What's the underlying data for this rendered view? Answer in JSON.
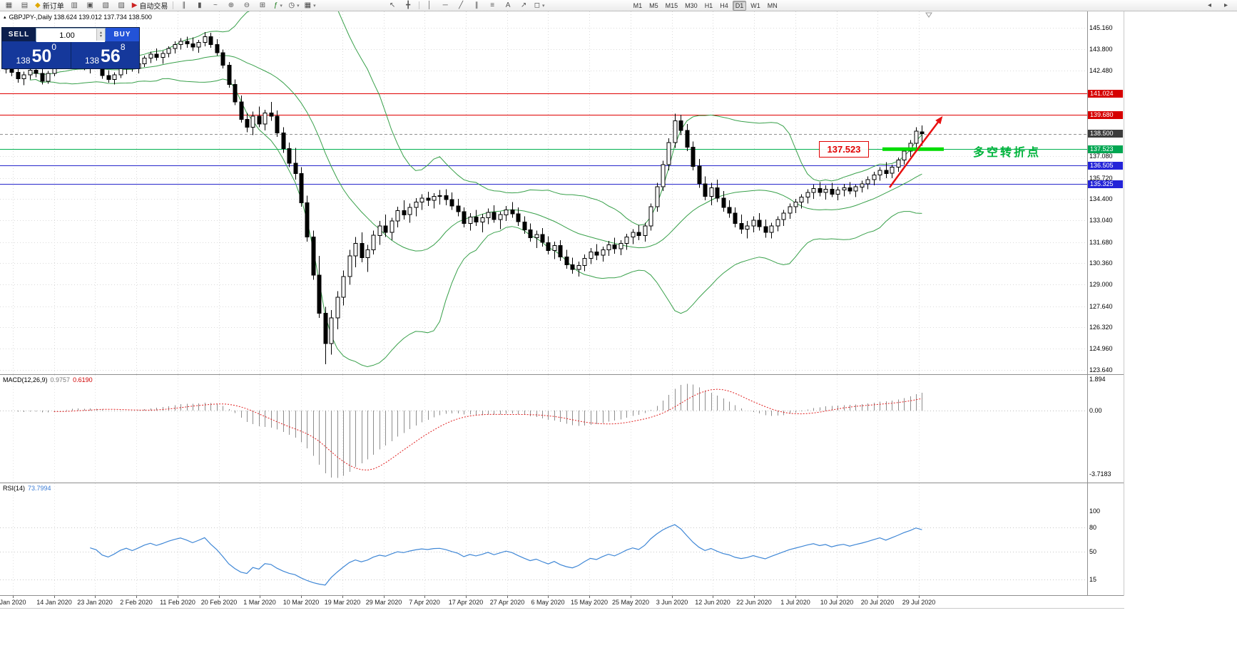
{
  "toolbar": {
    "groups": [
      {
        "type": "icons",
        "items": [
          {
            "name": "new-chart-icon",
            "glyph": "▦"
          },
          {
            "name": "chart-profiles-icon",
            "glyph": "▤"
          }
        ]
      },
      {
        "type": "button",
        "name": "new-order-button",
        "label": "新订单",
        "icon": {
          "name": "new-order-icon",
          "glyph": "◆",
          "color": "#e0a800"
        }
      },
      {
        "type": "icons",
        "items": [
          {
            "name": "market-watch-icon",
            "glyph": "▥"
          },
          {
            "name": "data-window-icon",
            "glyph": "▣"
          },
          {
            "name": "navigator-icon",
            "glyph": "▧"
          },
          {
            "name": "terminal-icon",
            "glyph": "▨"
          }
        ]
      },
      {
        "type": "button",
        "name": "autotrading-button",
        "label": "自动交易",
        "icon": {
          "name": "autotrading-icon",
          "glyph": "▶",
          "color": "#cc2222"
        }
      },
      {
        "type": "sep"
      },
      {
        "type": "icons",
        "items": [
          {
            "name": "bar-chart-icon",
            "glyph": "∥"
          },
          {
            "name": "candlestick-chart-icon",
            "glyph": "▮"
          },
          {
            "name": "line-chart-icon",
            "glyph": "~"
          }
        ]
      },
      {
        "type": "icons",
        "items": [
          {
            "name": "zoom-in-icon",
            "glyph": "⊕"
          },
          {
            "name": "zoom-out-icon",
            "glyph": "⊖"
          }
        ]
      },
      {
        "type": "icons",
        "items": [
          {
            "name": "tile-windows-icon",
            "glyph": "⊞"
          }
        ]
      },
      {
        "type": "dropdown",
        "name": "indicators-button",
        "icon": {
          "name": "indicators-icon",
          "glyph": "ƒ",
          "color": "#1a7a1a"
        }
      },
      {
        "type": "dropdown",
        "name": "periods-button",
        "icon": {
          "name": "periods-icon",
          "glyph": "◷",
          "color": "#444444"
        }
      },
      {
        "type": "dropdown",
        "name": "templates-button",
        "icon": {
          "name": "templates-icon",
          "glyph": "▦",
          "color": "#444444"
        }
      },
      {
        "type": "gap"
      },
      {
        "type": "icons",
        "items": [
          {
            "name": "cursor-icon",
            "glyph": "↖"
          },
          {
            "name": "crosshair-icon",
            "glyph": "╋"
          }
        ]
      },
      {
        "type": "sep"
      },
      {
        "type": "icons",
        "items": [
          {
            "name": "vertical-line-icon",
            "glyph": "│"
          },
          {
            "name": "horizontal-line-icon",
            "glyph": "─"
          },
          {
            "name": "trendline-icon",
            "glyph": "╱"
          },
          {
            "name": "channel-icon",
            "glyph": "∥"
          },
          {
            "name": "fibonacci-icon",
            "glyph": "≡"
          }
        ]
      },
      {
        "type": "icons",
        "items": [
          {
            "name": "text-tool-icon",
            "glyph": "A"
          },
          {
            "name": "arrow-tool-icon",
            "glyph": "↗"
          }
        ]
      },
      {
        "type": "dropdown",
        "name": "shapes-button",
        "icon": {
          "name": "shapes-icon",
          "glyph": "◻",
          "color": "#444444"
        }
      },
      {
        "type": "timeframes"
      }
    ],
    "timeframes": [
      "M1",
      "M5",
      "M15",
      "M30",
      "H1",
      "H4",
      "D1",
      "W1",
      "MN"
    ],
    "active_timeframe": "D1",
    "right_icons": [
      {
        "name": "toolbar-overflow-left-icon",
        "glyph": "◂"
      },
      {
        "name": "toolbar-overflow-right-icon",
        "glyph": "▸"
      }
    ]
  },
  "quote": {
    "toggle_glyph": "▴",
    "text": "GBPJPY-,Daily  138.624 139.012 137.734 138.500"
  },
  "trade_panel": {
    "sell_label": "SELL",
    "buy_label": "BUY",
    "volume": "1.00",
    "bid": {
      "prefix": "138",
      "big": "50",
      "sup": "0"
    },
    "ask": {
      "prefix": "138",
      "big": "56",
      "sup": "8"
    }
  },
  "price_axis": {
    "labels": [
      {
        "text": "145.160",
        "type": "plain"
      },
      {
        "text": "143.800",
        "type": "plain"
      },
      {
        "text": "142.480",
        "type": "plain"
      },
      {
        "text": "141.024",
        "type": "chip",
        "bg": "#d60000",
        "line": "solid",
        "line_color": "#e00000"
      },
      {
        "text": "139.680",
        "type": "chip",
        "bg": "#d60000",
        "line": "solid",
        "line_color": "#e00000"
      },
      {
        "text": "138.500",
        "type": "chip",
        "bg": "#3c3c3c",
        "line": "dash",
        "line_color": "#909090"
      },
      {
        "text": "137.523",
        "type": "chip",
        "bg": "#00a651",
        "line": "solid",
        "line_color": "#00b050"
      },
      {
        "text": "137.080",
        "type": "plain"
      },
      {
        "text": "136.505",
        "type": "chip",
        "bg": "#2424d8",
        "line": "solid",
        "line_color": "#2828cc"
      },
      {
        "text": "135.720",
        "type": "plain"
      },
      {
        "text": "135.325",
        "type": "chip",
        "bg": "#2424d8",
        "line": "solid",
        "line_color": "#2828cc"
      },
      {
        "text": "134.400",
        "type": "plain"
      },
      {
        "text": "133.040",
        "type": "plain"
      },
      {
        "text": "131.680",
        "type": "plain"
      },
      {
        "text": "130.360",
        "type": "plain"
      },
      {
        "text": "129.000",
        "type": "plain"
      },
      {
        "text": "127.640",
        "type": "plain"
      },
      {
        "text": "126.320",
        "type": "plain"
      },
      {
        "text": "124.960",
        "type": "plain"
      },
      {
        "text": "123.640",
        "type": "plain"
      }
    ]
  },
  "macd": {
    "name": "MACD(12,26,9)",
    "value_main": "0.9757",
    "value_signal": "0.6190",
    "axis": [
      "1.894",
      "0.00",
      "-3.7183"
    ]
  },
  "rsi": {
    "name": "RSI(14)",
    "value": "73.7994",
    "axis": [
      "100",
      "80",
      "50",
      "15"
    ]
  },
  "annotations": {
    "price_box": "137.523",
    "note": "多空转折点"
  },
  "dates": [
    "Jan 2020",
    "14 Jan 2020",
    "23 Jan 2020",
    "2 Feb 2020",
    "11 Feb 2020",
    "20 Feb 2020",
    "1 Mar 2020",
    "10 Mar 2020",
    "19 Mar 2020",
    "29 Mar 2020",
    "7 Apr 2020",
    "17 Apr 2020",
    "27 Apr 2020",
    "6 May 2020",
    "15 May 2020",
    "25 May 2020",
    "3 Jun 2020",
    "12 Jun 2020",
    "22 Jun 2020",
    "1 Jul 2020",
    "10 Jul 2020",
    "20 Jul 2020",
    "29 Jul 2020"
  ],
  "chart_data": {
    "type": "candlestick",
    "symbol": "GBPJPY-",
    "timeframe": "Daily",
    "title": "GBPJPY-,Daily 138.624 139.012 137.734 138.500",
    "levels": [
      141.024,
      139.68,
      138.5,
      137.523,
      136.505,
      135.325
    ],
    "indicators": [
      {
        "name": "Bollinger Bands",
        "period": 20,
        "deviation": 2
      },
      {
        "name": "MACD",
        "fast": 12,
        "slow": 26,
        "signal": 9,
        "values": [
          0.9757,
          0.619
        ],
        "range": [
          -3.7183,
          1.894
        ]
      },
      {
        "name": "RSI",
        "period": 14,
        "value": 73.7994,
        "levels": [
          80,
          50,
          15
        ]
      }
    ],
    "ohlc": [
      [
        142.75,
        143.05,
        142.3,
        142.55
      ],
      [
        142.55,
        142.9,
        142.1,
        142.35
      ],
      [
        142.35,
        142.6,
        141.7,
        141.95
      ],
      [
        141.95,
        142.4,
        141.55,
        142.2
      ],
      [
        142.2,
        142.65,
        141.9,
        142.5
      ],
      [
        142.5,
        142.85,
        142.05,
        142.3
      ],
      [
        142.3,
        142.55,
        141.6,
        141.8
      ],
      [
        141.8,
        142.45,
        141.65,
        142.3
      ],
      [
        142.3,
        142.95,
        142.1,
        142.8
      ],
      [
        142.8,
        143.3,
        142.6,
        143.1
      ],
      [
        143.1,
        143.45,
        142.75,
        142.95
      ],
      [
        142.95,
        143.5,
        142.8,
        143.35
      ],
      [
        143.35,
        143.6,
        142.9,
        143.05
      ],
      [
        143.05,
        143.4,
        142.5,
        142.7
      ],
      [
        142.7,
        143.1,
        142.3,
        142.95
      ],
      [
        142.95,
        143.25,
        142.55,
        142.75
      ],
      [
        142.75,
        142.9,
        141.95,
        142.15
      ],
      [
        142.15,
        142.5,
        141.7,
        141.9
      ],
      [
        141.9,
        142.35,
        141.6,
        142.2
      ],
      [
        142.2,
        142.8,
        142.0,
        142.6
      ],
      [
        142.6,
        143.0,
        142.25,
        142.85
      ],
      [
        142.85,
        143.2,
        142.4,
        142.6
      ],
      [
        142.6,
        143.05,
        142.3,
        142.9
      ],
      [
        142.9,
        143.4,
        142.7,
        143.25
      ],
      [
        143.25,
        143.65,
        142.95,
        143.5
      ],
      [
        143.5,
        143.85,
        143.1,
        143.3
      ],
      [
        143.3,
        143.7,
        142.9,
        143.55
      ],
      [
        143.55,
        144.0,
        143.3,
        143.85
      ],
      [
        143.85,
        144.3,
        143.55,
        144.1
      ],
      [
        144.1,
        144.5,
        143.8,
        144.3
      ],
      [
        144.3,
        144.6,
        143.9,
        144.15
      ],
      [
        144.15,
        144.55,
        143.7,
        143.95
      ],
      [
        143.95,
        144.4,
        143.6,
        144.25
      ],
      [
        144.25,
        144.9,
        144.0,
        144.6
      ],
      [
        144.6,
        144.85,
        143.9,
        144.1
      ],
      [
        144.1,
        144.45,
        143.4,
        143.6
      ],
      [
        143.6,
        143.8,
        142.6,
        142.8
      ],
      [
        142.8,
        143.0,
        141.4,
        141.6
      ],
      [
        141.6,
        141.9,
        140.3,
        140.5
      ],
      [
        140.5,
        140.9,
        139.2,
        139.4
      ],
      [
        139.4,
        139.8,
        138.6,
        138.9
      ],
      [
        138.9,
        139.9,
        138.4,
        139.6
      ],
      [
        139.6,
        140.2,
        138.9,
        139.1
      ],
      [
        139.1,
        140.0,
        138.7,
        139.8
      ],
      [
        139.8,
        140.5,
        139.3,
        139.6
      ],
      [
        139.6,
        139.95,
        138.3,
        138.55
      ],
      [
        138.55,
        138.9,
        137.3,
        137.55
      ],
      [
        137.55,
        137.95,
        136.4,
        136.65
      ],
      [
        136.65,
        137.6,
        135.6,
        136.0
      ],
      [
        136.0,
        136.4,
        133.9,
        134.15
      ],
      [
        134.15,
        134.6,
        131.7,
        132.0
      ],
      [
        132.0,
        132.4,
        129.3,
        129.6
      ],
      [
        129.6,
        130.8,
        126.9,
        127.2
      ],
      [
        127.2,
        127.6,
        124.0,
        125.3
      ],
      [
        125.3,
        127.4,
        124.6,
        126.9
      ],
      [
        126.9,
        128.6,
        126.2,
        128.2
      ],
      [
        128.2,
        129.9,
        127.7,
        129.5
      ],
      [
        129.5,
        131.2,
        129.0,
        130.8
      ],
      [
        130.8,
        132.0,
        130.1,
        131.6
      ],
      [
        131.6,
        132.3,
        130.4,
        130.7
      ],
      [
        130.7,
        131.5,
        129.8,
        131.2
      ],
      [
        131.2,
        132.4,
        130.9,
        132.1
      ],
      [
        132.1,
        133.0,
        131.5,
        132.7
      ],
      [
        132.7,
        133.4,
        132.0,
        132.3
      ],
      [
        132.3,
        133.2,
        131.8,
        133.0
      ],
      [
        133.0,
        133.9,
        132.6,
        133.65
      ],
      [
        133.65,
        134.3,
        133.1,
        133.4
      ],
      [
        133.4,
        134.1,
        132.9,
        133.85
      ],
      [
        133.85,
        134.45,
        133.3,
        134.2
      ],
      [
        134.2,
        134.7,
        133.7,
        134.45
      ],
      [
        134.45,
        134.85,
        133.95,
        134.3
      ],
      [
        134.3,
        134.75,
        133.8,
        134.55
      ],
      [
        134.55,
        134.95,
        134.05,
        134.6
      ],
      [
        134.6,
        135.0,
        134.0,
        134.35
      ],
      [
        134.35,
        134.8,
        133.7,
        133.95
      ],
      [
        133.95,
        134.4,
        133.3,
        133.6
      ],
      [
        133.6,
        133.85,
        132.6,
        132.85
      ],
      [
        132.85,
        133.5,
        132.4,
        133.25
      ],
      [
        133.25,
        133.7,
        132.7,
        132.95
      ],
      [
        132.95,
        133.45,
        132.3,
        133.2
      ],
      [
        133.2,
        133.8,
        132.8,
        133.55
      ],
      [
        133.55,
        134.0,
        132.9,
        133.1
      ],
      [
        133.1,
        133.6,
        132.5,
        133.4
      ],
      [
        133.4,
        133.95,
        133.0,
        133.7
      ],
      [
        133.7,
        134.2,
        133.2,
        133.45
      ],
      [
        133.45,
        133.85,
        132.7,
        132.95
      ],
      [
        132.95,
        133.3,
        132.2,
        132.45
      ],
      [
        132.45,
        132.85,
        131.7,
        131.95
      ],
      [
        131.95,
        132.4,
        131.3,
        132.15
      ],
      [
        132.15,
        132.55,
        131.4,
        131.65
      ],
      [
        131.65,
        132.05,
        130.9,
        131.15
      ],
      [
        131.15,
        131.7,
        130.6,
        131.45
      ],
      [
        131.45,
        131.8,
        130.5,
        130.75
      ],
      [
        130.75,
        131.2,
        130.0,
        130.25
      ],
      [
        130.25,
        130.7,
        129.7,
        129.95
      ],
      [
        129.95,
        130.45,
        129.5,
        130.2
      ],
      [
        130.2,
        130.9,
        129.85,
        130.65
      ],
      [
        130.65,
        131.3,
        130.3,
        131.05
      ],
      [
        131.05,
        131.55,
        130.55,
        130.85
      ],
      [
        130.85,
        131.4,
        130.45,
        131.2
      ],
      [
        131.2,
        131.75,
        130.8,
        131.5
      ],
      [
        131.5,
        131.95,
        130.95,
        131.25
      ],
      [
        131.25,
        131.8,
        130.85,
        131.6
      ],
      [
        131.6,
        132.2,
        131.2,
        132.0
      ],
      [
        132.0,
        132.5,
        131.55,
        132.3
      ],
      [
        132.3,
        132.75,
        131.8,
        132.1
      ],
      [
        132.1,
        132.9,
        131.7,
        132.7
      ],
      [
        132.7,
        134.1,
        132.4,
        133.9
      ],
      [
        133.9,
        135.4,
        133.6,
        135.15
      ],
      [
        135.15,
        136.8,
        134.9,
        136.55
      ],
      [
        136.55,
        138.2,
        136.2,
        137.95
      ],
      [
        137.95,
        139.75,
        137.6,
        139.3
      ],
      [
        139.3,
        139.7,
        138.4,
        138.7
      ],
      [
        138.7,
        139.1,
        137.4,
        137.65
      ],
      [
        137.65,
        138.0,
        136.2,
        136.45
      ],
      [
        136.45,
        136.9,
        135.1,
        135.35
      ],
      [
        135.35,
        135.8,
        134.3,
        134.55
      ],
      [
        134.55,
        135.4,
        134.0,
        135.1
      ],
      [
        135.1,
        135.6,
        134.2,
        134.45
      ],
      [
        134.45,
        134.9,
        133.6,
        133.85
      ],
      [
        133.85,
        134.3,
        133.2,
        133.5
      ],
      [
        133.5,
        133.85,
        132.6,
        132.85
      ],
      [
        132.85,
        133.4,
        132.2,
        132.5
      ],
      [
        132.5,
        133.0,
        131.9,
        132.7
      ],
      [
        132.7,
        133.3,
        132.3,
        133.05
      ],
      [
        133.05,
        133.5,
        132.4,
        132.65
      ],
      [
        132.65,
        133.1,
        131.95,
        132.3
      ],
      [
        132.3,
        132.9,
        131.9,
        132.7
      ],
      [
        132.7,
        133.3,
        132.35,
        133.1
      ],
      [
        133.1,
        133.7,
        132.7,
        133.5
      ],
      [
        133.5,
        134.1,
        133.15,
        133.9
      ],
      [
        133.9,
        134.4,
        133.5,
        134.2
      ],
      [
        134.2,
        134.7,
        133.8,
        134.5
      ],
      [
        134.5,
        135.0,
        134.1,
        134.8
      ],
      [
        134.8,
        135.3,
        134.4,
        135.05
      ],
      [
        135.05,
        135.45,
        134.55,
        134.8
      ],
      [
        134.8,
        135.25,
        134.35,
        135.0
      ],
      [
        135.0,
        135.4,
        134.5,
        134.7
      ],
      [
        134.7,
        135.15,
        134.3,
        134.95
      ],
      [
        134.95,
        135.35,
        134.55,
        135.1
      ],
      [
        135.1,
        135.45,
        134.7,
        134.9
      ],
      [
        134.9,
        135.3,
        134.5,
        135.15
      ],
      [
        135.15,
        135.55,
        134.8,
        135.35
      ],
      [
        135.35,
        135.8,
        135.0,
        135.6
      ],
      [
        135.6,
        136.1,
        135.25,
        135.9
      ],
      [
        135.9,
        136.4,
        135.55,
        136.2
      ],
      [
        136.2,
        136.7,
        135.7,
        136.0
      ],
      [
        136.0,
        136.55,
        135.7,
        136.4
      ],
      [
        136.4,
        137.0,
        136.1,
        136.85
      ],
      [
        136.85,
        137.6,
        136.55,
        137.4
      ],
      [
        137.4,
        138.1,
        137.05,
        137.9
      ],
      [
        137.9,
        138.9,
        137.55,
        138.65
      ],
      [
        138.62,
        139.01,
        137.73,
        138.5
      ]
    ]
  }
}
